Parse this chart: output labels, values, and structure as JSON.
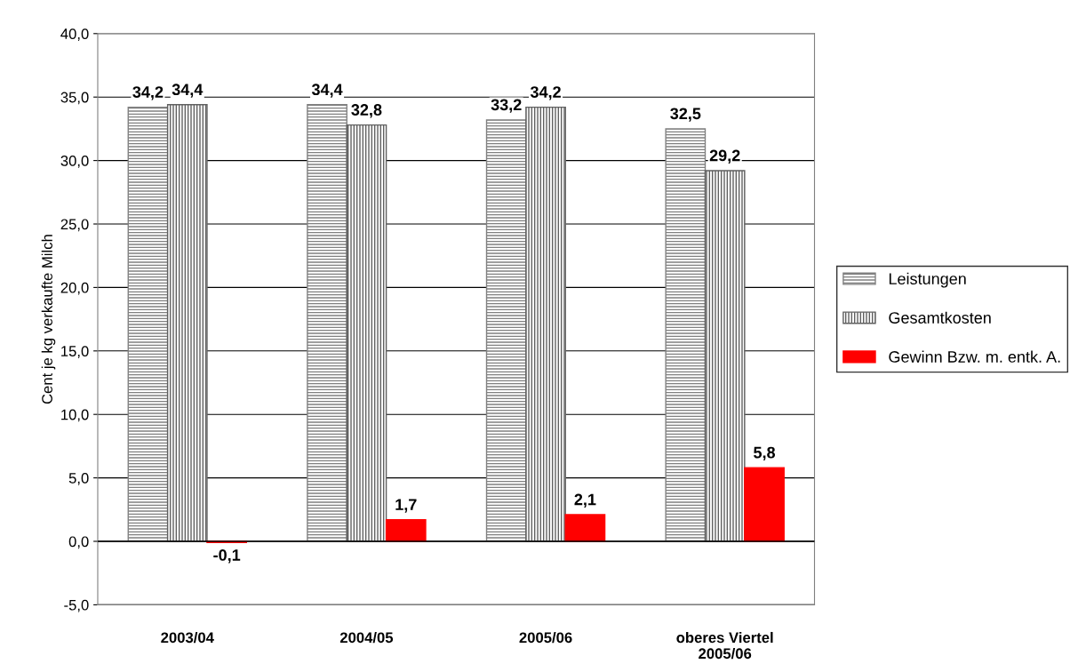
{
  "chart_data": {
    "type": "bar",
    "ylabel": "Cent je kg verkaufte Milch",
    "categories": [
      "2003/04",
      "2004/05",
      "2005/06",
      "oberes Viertel\n2005/06"
    ],
    "series": [
      {
        "name": "Leistungen",
        "color": "#808080",
        "values": [
          34.2,
          34.4,
          33.2,
          32.5
        ],
        "value_labels": [
          "34,2",
          "34,4",
          "33,2",
          "32,5"
        ]
      },
      {
        "name": "Gesamtkosten",
        "color": "#606060",
        "values": [
          34.4,
          32.8,
          34.2,
          29.2
        ],
        "value_labels": [
          "34,4",
          "32,8",
          "34,2",
          "29,2"
        ]
      },
      {
        "name": "Gewinn Bzw. m. entk. A.",
        "color": "#ff0000",
        "values": [
          -0.1,
          1.7,
          2.1,
          5.8
        ],
        "value_labels": [
          "-0,1",
          "1,7",
          "2,1",
          "5,8"
        ]
      }
    ],
    "ylim": [
      -5,
      40
    ],
    "yticks": [
      {
        "value": -5,
        "label": "-5,0"
      },
      {
        "value": 0,
        "label": "0,0"
      },
      {
        "value": 5,
        "label": "5,0"
      },
      {
        "value": 10,
        "label": "10,0"
      },
      {
        "value": 15,
        "label": "15,0"
      },
      {
        "value": 20,
        "label": "20,0"
      },
      {
        "value": 25,
        "label": "25,0"
      },
      {
        "value": 30,
        "label": "30,0"
      },
      {
        "value": 35,
        "label": "35,0"
      },
      {
        "value": 40,
        "label": "40,0"
      }
    ],
    "grid": "y",
    "legend": "right"
  }
}
